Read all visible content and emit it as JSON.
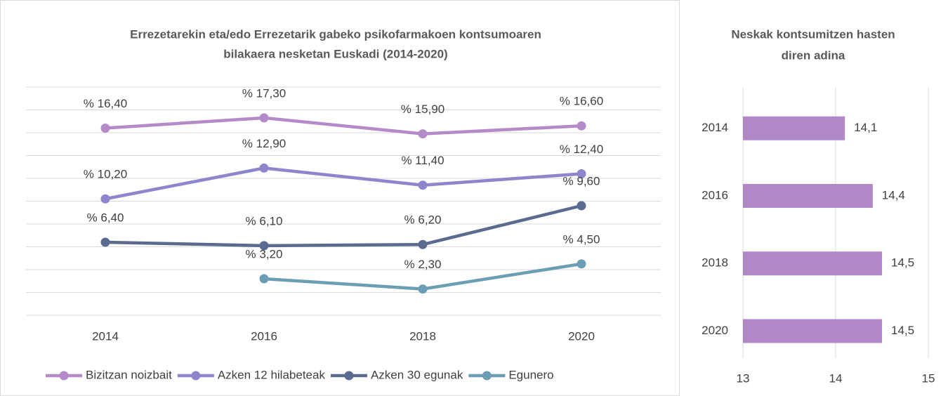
{
  "chart_data": [
    {
      "type": "line",
      "title": [
        "Errezetarekin eta/edo Errezetarik gabeko psikofarmakoen kontsumoaren",
        "bilakaera nesketan Euskadi (2014-2020)"
      ],
      "categories": [
        "2014",
        "2016",
        "2018",
        "2020"
      ],
      "ylim": [
        0,
        20
      ],
      "yticks": [
        0,
        2,
        4,
        6,
        8,
        10,
        12,
        14,
        16,
        18,
        20
      ],
      "grid": true,
      "legend": "bottom",
      "series": [
        {
          "name": "Bizitzan noizbait",
          "color": "#b48ac9",
          "values": [
            16.4,
            17.3,
            15.9,
            16.6
          ],
          "value_labels": [
            "% 16,40",
            "% 17,30",
            "% 15,90",
            "% 16,60"
          ]
        },
        {
          "name": "Azken 12 hilabeteak",
          "color": "#8e86cc",
          "values": [
            10.2,
            12.9,
            11.4,
            12.4
          ],
          "value_labels": [
            "% 10,20",
            "% 12,90",
            "% 11,40",
            "% 12,40"
          ]
        },
        {
          "name": "Azken 30 egunak",
          "color": "#5b6b8f",
          "values": [
            6.4,
            6.1,
            6.2,
            9.6
          ],
          "value_labels": [
            "% 6,40",
            "% 6,10",
            "% 6,20",
            "% 9,60"
          ]
        },
        {
          "name": "Egunero",
          "color": "#6b9db5",
          "values": [
            null,
            3.2,
            2.3,
            4.5
          ],
          "value_labels": [
            null,
            "% 3,20",
            "% 2,30",
            "% 4,50"
          ]
        }
      ]
    },
    {
      "type": "hbar",
      "title": [
        "Neskak kontsumitzen hasten",
        "diren adina"
      ],
      "categories": [
        "2014",
        "2016",
        "2018",
        "2020"
      ],
      "values": [
        14.1,
        14.4,
        14.5,
        14.5
      ],
      "value_labels": [
        "14,1",
        "14,4",
        "14,5",
        "14,5"
      ],
      "color": "#b088c8",
      "xlim": [
        13,
        15
      ],
      "xticks": [
        13,
        14,
        15
      ],
      "grid": true
    }
  ]
}
